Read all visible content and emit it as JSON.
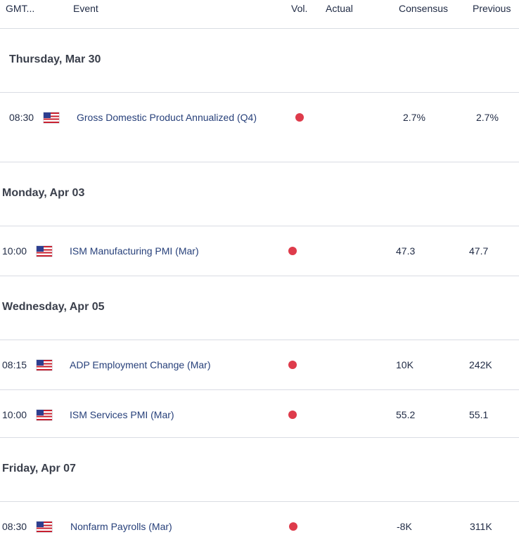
{
  "header": {
    "gmt": "GMT...",
    "event": "Event",
    "vol": "Vol.",
    "actual": "Actual",
    "consensus": "Consensus",
    "previous": "Previous"
  },
  "colors": {
    "volatility_dot": "#de3b4b",
    "event_text": "#27407a"
  },
  "days": [
    {
      "label": "Thursday, Mar 30"
    },
    {
      "label": "Monday, Apr 03"
    },
    {
      "label": "Wednesday, Apr 05"
    },
    {
      "label": "Friday, Apr 07"
    }
  ],
  "events": [
    {
      "time": "08:30",
      "country_icon": "us-flag-icon",
      "name": "Gross Domestic Product Annualized (Q4)",
      "volatility": "high",
      "actual": "",
      "consensus": "2.7%",
      "previous": "2.7%"
    },
    {
      "time": "10:00",
      "country_icon": "us-flag-icon",
      "name": "ISM Manufacturing PMI (Mar)",
      "volatility": "high",
      "actual": "",
      "consensus": "47.3",
      "previous": "47.7"
    },
    {
      "time": "08:15",
      "country_icon": "us-flag-icon",
      "name": "ADP Employment Change (Mar)",
      "volatility": "high",
      "actual": "",
      "consensus": "10K",
      "previous": "242K"
    },
    {
      "time": "10:00",
      "country_icon": "us-flag-icon",
      "name": "ISM Services PMI (Mar)",
      "volatility": "high",
      "actual": "",
      "consensus": "55.2",
      "previous": "55.1"
    },
    {
      "time": "08:30",
      "country_icon": "us-flag-icon",
      "name": "Nonfarm Payrolls (Mar)",
      "volatility": "high",
      "actual": "",
      "consensus": "-8K",
      "previous": "311K"
    }
  ]
}
